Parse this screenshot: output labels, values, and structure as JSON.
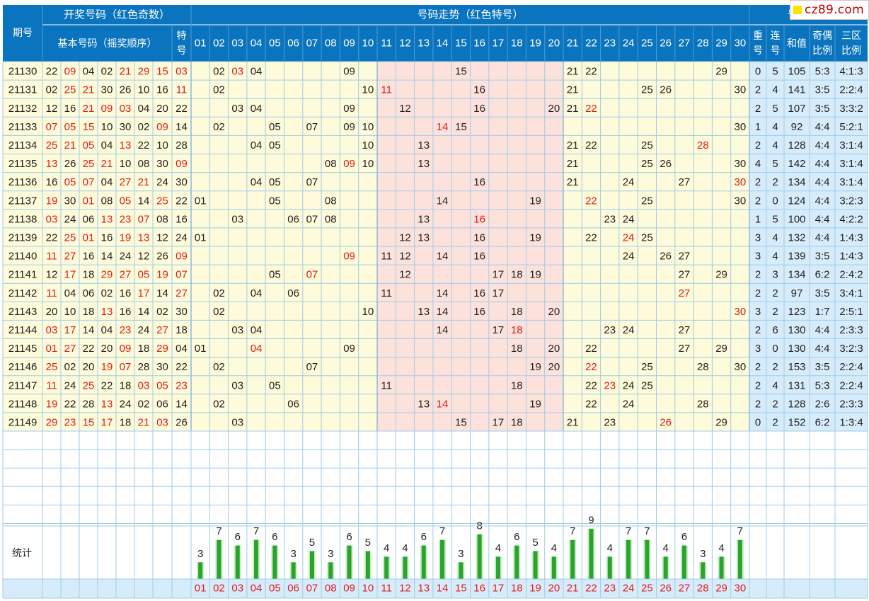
{
  "header": {
    "period_label": "期号",
    "draw_group": "开奖号码（红色奇数）",
    "basic_numbers": "基本号码（摇奖顺序）",
    "special": "特号",
    "trend_group": "号码走势（红色特号）",
    "analysis_group": "号码分析",
    "repeat": "重号",
    "consecutive": "连号",
    "sum": "和值",
    "odd_even": "奇偶比例",
    "three_zone": "三区比例"
  },
  "watermark": "cz89.com",
  "stats_label": "统计",
  "colors": {
    "header_bg": "#0b74bf",
    "header_text": "#ffffff",
    "grid_line": "#9fcbea",
    "row_yellow": "#fdfbd9",
    "row_pink": "#fde2dc",
    "row_blue": "#d7ecfb",
    "odd_red": "#e31b1b",
    "text_dark": "#222222",
    "bar_green": "#2aa52a",
    "bar_light": "#c5edc5"
  },
  "rows": [
    {
      "period": "21130",
      "nums": [
        "22",
        "09",
        "04",
        "02",
        "21",
        "29",
        "15"
      ],
      "special": "03",
      "trend": [
        "02",
        "03",
        "04",
        "09",
        "15",
        "21",
        "22",
        "29"
      ],
      "hl": "03",
      "repeat": "0",
      "consec": "5",
      "sum": "105",
      "oe": "5:3",
      "zone": "4:1:3"
    },
    {
      "period": "21131",
      "nums": [
        "02",
        "25",
        "21",
        "30",
        "26",
        "10",
        "16"
      ],
      "special": "11",
      "trend": [
        "02",
        "10",
        "11",
        "16",
        "21",
        "25",
        "26",
        "30"
      ],
      "hl": "11",
      "repeat": "2",
      "consec": "4",
      "sum": "141",
      "oe": "3:5",
      "zone": "2:2:4"
    },
    {
      "period": "21132",
      "nums": [
        "12",
        "16",
        "21",
        "09",
        "03",
        "04",
        "20"
      ],
      "special": "22",
      "trend": [
        "03",
        "04",
        "09",
        "12",
        "16",
        "20",
        "21",
        "22"
      ],
      "hl": "22",
      "repeat": "2",
      "consec": "5",
      "sum": "107",
      "oe": "3:5",
      "zone": "3:3:2"
    },
    {
      "period": "21133",
      "nums": [
        "07",
        "05",
        "15",
        "10",
        "30",
        "02",
        "09"
      ],
      "special": "14",
      "trend": [
        "02",
        "05",
        "07",
        "09",
        "10",
        "14",
        "15",
        "30"
      ],
      "hl": "14",
      "repeat": "1",
      "consec": "4",
      "sum": "92",
      "oe": "4:4",
      "zone": "5:2:1"
    },
    {
      "period": "21134",
      "nums": [
        "25",
        "21",
        "05",
        "04",
        "13",
        "22",
        "10"
      ],
      "special": "28",
      "trend": [
        "04",
        "05",
        "10",
        "13",
        "21",
        "22",
        "25",
        "28"
      ],
      "hl": "28",
      "repeat": "2",
      "consec": "4",
      "sum": "128",
      "oe": "4:4",
      "zone": "3:1:4"
    },
    {
      "period": "21135",
      "nums": [
        "13",
        "26",
        "25",
        "21",
        "10",
        "08",
        "30"
      ],
      "special": "09",
      "trend": [
        "08",
        "09",
        "10",
        "13",
        "21",
        "25",
        "26",
        "30"
      ],
      "hl": "09",
      "repeat": "4",
      "consec": "5",
      "sum": "142",
      "oe": "4:4",
      "zone": "3:1:4"
    },
    {
      "period": "21136",
      "nums": [
        "16",
        "05",
        "07",
        "04",
        "27",
        "21",
        "24"
      ],
      "special": "30",
      "trend": [
        "04",
        "05",
        "07",
        "16",
        "21",
        "24",
        "27",
        "30"
      ],
      "hl": "30",
      "repeat": "2",
      "consec": "2",
      "sum": "134",
      "oe": "4:4",
      "zone": "3:1:4"
    },
    {
      "period": "21137",
      "nums": [
        "19",
        "30",
        "01",
        "08",
        "05",
        "14",
        "25"
      ],
      "special": "22",
      "trend": [
        "01",
        "05",
        "08",
        "14",
        "19",
        "22",
        "25",
        "30"
      ],
      "hl": "22",
      "repeat": "2",
      "consec": "0",
      "sum": "124",
      "oe": "4:4",
      "zone": "3:2:3"
    },
    {
      "period": "21138",
      "nums": [
        "03",
        "24",
        "06",
        "13",
        "23",
        "07",
        "08"
      ],
      "special": "16",
      "trend": [
        "03",
        "06",
        "07",
        "08",
        "13",
        "16",
        "23",
        "24"
      ],
      "hl": "16",
      "repeat": "1",
      "consec": "5",
      "sum": "100",
      "oe": "4:4",
      "zone": "4:2:2"
    },
    {
      "period": "21139",
      "nums": [
        "22",
        "25",
        "01",
        "16",
        "19",
        "13",
        "12"
      ],
      "special": "24",
      "trend": [
        "01",
        "12",
        "13",
        "16",
        "19",
        "22",
        "24",
        "25"
      ],
      "hl": "24",
      "repeat": "3",
      "consec": "4",
      "sum": "132",
      "oe": "4:4",
      "zone": "1:4:3"
    },
    {
      "period": "21140",
      "nums": [
        "11",
        "27",
        "16",
        "14",
        "24",
        "12",
        "26"
      ],
      "special": "09",
      "trend": [
        "09",
        "11",
        "12",
        "14",
        "16",
        "24",
        "26",
        "27"
      ],
      "hl": "09",
      "repeat": "3",
      "consec": "4",
      "sum": "139",
      "oe": "3:5",
      "zone": "1:4:3"
    },
    {
      "period": "21141",
      "nums": [
        "12",
        "17",
        "18",
        "29",
        "27",
        "05",
        "19"
      ],
      "special": "07",
      "trend": [
        "05",
        "07",
        "12",
        "17",
        "18",
        "19",
        "27",
        "29"
      ],
      "hl": "07",
      "repeat": "2",
      "consec": "3",
      "sum": "134",
      "oe": "6:2",
      "zone": "2:4:2"
    },
    {
      "period": "21142",
      "nums": [
        "11",
        "04",
        "06",
        "02",
        "16",
        "17",
        "14"
      ],
      "special": "27",
      "trend": [
        "02",
        "04",
        "06",
        "11",
        "14",
        "16",
        "17",
        "27"
      ],
      "hl": "27",
      "repeat": "2",
      "consec": "2",
      "sum": "97",
      "oe": "3:5",
      "zone": "3:4:1"
    },
    {
      "period": "21143",
      "nums": [
        "20",
        "10",
        "18",
        "13",
        "16",
        "14",
        "02"
      ],
      "special": "30",
      "trend": [
        "02",
        "10",
        "13",
        "14",
        "16",
        "18",
        "20",
        "30"
      ],
      "hl": "30",
      "repeat": "3",
      "consec": "2",
      "sum": "123",
      "oe": "1:7",
      "zone": "2:5:1"
    },
    {
      "period": "21144",
      "nums": [
        "03",
        "17",
        "14",
        "04",
        "23",
        "24",
        "27"
      ],
      "special": "18",
      "trend": [
        "03",
        "04",
        "14",
        "17",
        "18",
        "23",
        "24",
        "27"
      ],
      "hl": "18",
      "repeat": "2",
      "consec": "6",
      "sum": "130",
      "oe": "4:4",
      "zone": "2:3:3"
    },
    {
      "period": "21145",
      "nums": [
        "01",
        "27",
        "22",
        "20",
        "09",
        "18",
        "29"
      ],
      "special": "04",
      "trend": [
        "01",
        "04",
        "09",
        "18",
        "20",
        "22",
        "27",
        "29"
      ],
      "hl": "04",
      "repeat": "3",
      "consec": "0",
      "sum": "130",
      "oe": "4:4",
      "zone": "3:2:3"
    },
    {
      "period": "21146",
      "nums": [
        "25",
        "02",
        "20",
        "19",
        "07",
        "28",
        "30"
      ],
      "special": "22",
      "trend": [
        "02",
        "07",
        "19",
        "20",
        "22",
        "25",
        "28",
        "30"
      ],
      "hl": "22",
      "repeat": "2",
      "consec": "2",
      "sum": "153",
      "oe": "3:5",
      "zone": "2:2:4"
    },
    {
      "period": "21147",
      "nums": [
        "11",
        "24",
        "25",
        "22",
        "18",
        "03",
        "05"
      ],
      "special": "23",
      "trend": [
        "03",
        "05",
        "11",
        "18",
        "22",
        "23",
        "24",
        "25"
      ],
      "hl": "23",
      "repeat": "2",
      "consec": "4",
      "sum": "131",
      "oe": "5:3",
      "zone": "2:2:4"
    },
    {
      "period": "21148",
      "nums": [
        "19",
        "22",
        "28",
        "13",
        "24",
        "02",
        "06"
      ],
      "special": "14",
      "trend": [
        "02",
        "06",
        "13",
        "14",
        "19",
        "22",
        "24",
        "28"
      ],
      "hl": "14",
      "repeat": "2",
      "consec": "2",
      "sum": "128",
      "oe": "2:6",
      "zone": "2:3:3"
    },
    {
      "period": "21149",
      "nums": [
        "29",
        "23",
        "15",
        "17",
        "18",
        "21",
        "03"
      ],
      "special": "26",
      "trend": [
        "03",
        "15",
        "17",
        "18",
        "21",
        "23",
        "26",
        "29"
      ],
      "hl": "26",
      "repeat": "0",
      "consec": "2",
      "sum": "152",
      "oe": "6:2",
      "zone": "1:3:4"
    }
  ],
  "chart_data": {
    "type": "bar",
    "title": "",
    "categories": [
      "01",
      "02",
      "03",
      "04",
      "05",
      "06",
      "07",
      "08",
      "09",
      "10",
      "11",
      "12",
      "13",
      "14",
      "15",
      "16",
      "17",
      "18",
      "19",
      "20",
      "21",
      "22",
      "23",
      "24",
      "25",
      "26",
      "27",
      "28",
      "29",
      "30"
    ],
    "values": [
      3,
      7,
      6,
      7,
      6,
      3,
      5,
      3,
      6,
      5,
      4,
      4,
      6,
      7,
      3,
      8,
      4,
      6,
      5,
      4,
      7,
      9,
      4,
      7,
      7,
      4,
      6,
      3,
      4,
      7
    ],
    "xlabel": "",
    "ylabel": "",
    "grid": true
  }
}
